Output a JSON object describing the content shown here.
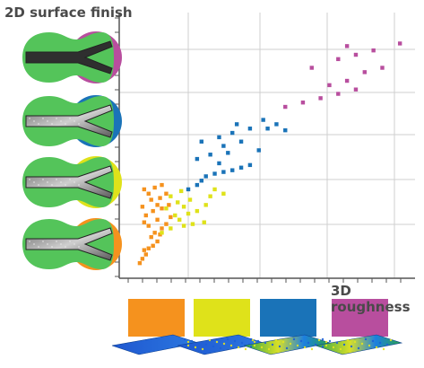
{
  "labels": {
    "y_title": "2D surface finish",
    "x_title": "3D roughness"
  },
  "series_colors": {
    "orange": "#f5921e",
    "yellow": "#dfe21a",
    "blue": "#1a73b8",
    "magenta": "#b84e9e"
  },
  "panel_icons": [
    "channel-micrograph-magenta",
    "channel-micrograph-blue",
    "channel-micrograph-yellow",
    "channel-micrograph-orange"
  ],
  "surface_icons": [
    "surface-map-orange",
    "surface-map-yellow",
    "surface-map-blue",
    "surface-map-magenta"
  ],
  "chart_data": {
    "type": "scatter",
    "x_scale": "relative",
    "y_scale": "relative",
    "grid": true,
    "series": [
      {
        "color": "orange",
        "points": [
          [
            5,
            5
          ],
          [
            8,
            10
          ],
          [
            12,
            15
          ],
          [
            10,
            20
          ],
          [
            15,
            22
          ],
          [
            20,
            25
          ],
          [
            25,
            30
          ],
          [
            18,
            35
          ],
          [
            22,
            40
          ],
          [
            28,
            38
          ],
          [
            30,
            45
          ],
          [
            15,
            48
          ],
          [
            10,
            52
          ],
          [
            25,
            55
          ],
          [
            35,
            50
          ],
          [
            40,
            58
          ],
          [
            12,
            60
          ],
          [
            20,
            65
          ],
          [
            30,
            68
          ],
          [
            8,
            70
          ],
          [
            25,
            72
          ],
          [
            38,
            72
          ],
          [
            18,
            78
          ],
          [
            28,
            80
          ],
          [
            15,
            85
          ],
          [
            35,
            85
          ],
          [
            10,
            90
          ],
          [
            22,
            92
          ],
          [
            30,
            95
          ]
        ]
      },
      {
        "color": "yellow",
        "points": [
          [
            30,
            40
          ],
          [
            40,
            45
          ],
          [
            55,
            48
          ],
          [
            65,
            50
          ],
          [
            78,
            52
          ],
          [
            50,
            55
          ],
          [
            45,
            60
          ],
          [
            60,
            62
          ],
          [
            70,
            65
          ],
          [
            35,
            68
          ],
          [
            55,
            70
          ],
          [
            80,
            72
          ],
          [
            48,
            75
          ],
          [
            62,
            78
          ],
          [
            40,
            82
          ],
          [
            85,
            82
          ],
          [
            52,
            88
          ],
          [
            90,
            90
          ],
          [
            100,
            85
          ]
        ]
      },
      {
        "color": "blue",
        "points": [
          [
            60,
            90
          ],
          [
            70,
            95
          ],
          [
            75,
            100
          ],
          [
            80,
            105
          ],
          [
            90,
            108
          ],
          [
            100,
            110
          ],
          [
            110,
            112
          ],
          [
            120,
            115
          ],
          [
            95,
            120
          ],
          [
            130,
            118
          ],
          [
            70,
            125
          ],
          [
            85,
            130
          ],
          [
            105,
            132
          ],
          [
            140,
            135
          ],
          [
            100,
            140
          ],
          [
            120,
            145
          ],
          [
            75,
            145
          ],
          [
            95,
            150
          ],
          [
            110,
            155
          ],
          [
            130,
            160
          ],
          [
            115,
            165
          ],
          [
            150,
            160
          ],
          [
            160,
            165
          ],
          [
            170,
            158
          ],
          [
            145,
            170
          ]
        ]
      },
      {
        "color": "magenta",
        "points": [
          [
            170,
            185
          ],
          [
            190,
            190
          ],
          [
            210,
            195
          ],
          [
            230,
            200
          ],
          [
            250,
            205
          ],
          [
            220,
            210
          ],
          [
            240,
            215
          ],
          [
            260,
            225
          ],
          [
            280,
            230
          ],
          [
            200,
            230
          ],
          [
            230,
            240
          ],
          [
            250,
            245
          ],
          [
            270,
            250
          ],
          [
            240,
            255
          ],
          [
            300,
            258
          ]
        ]
      }
    ]
  }
}
